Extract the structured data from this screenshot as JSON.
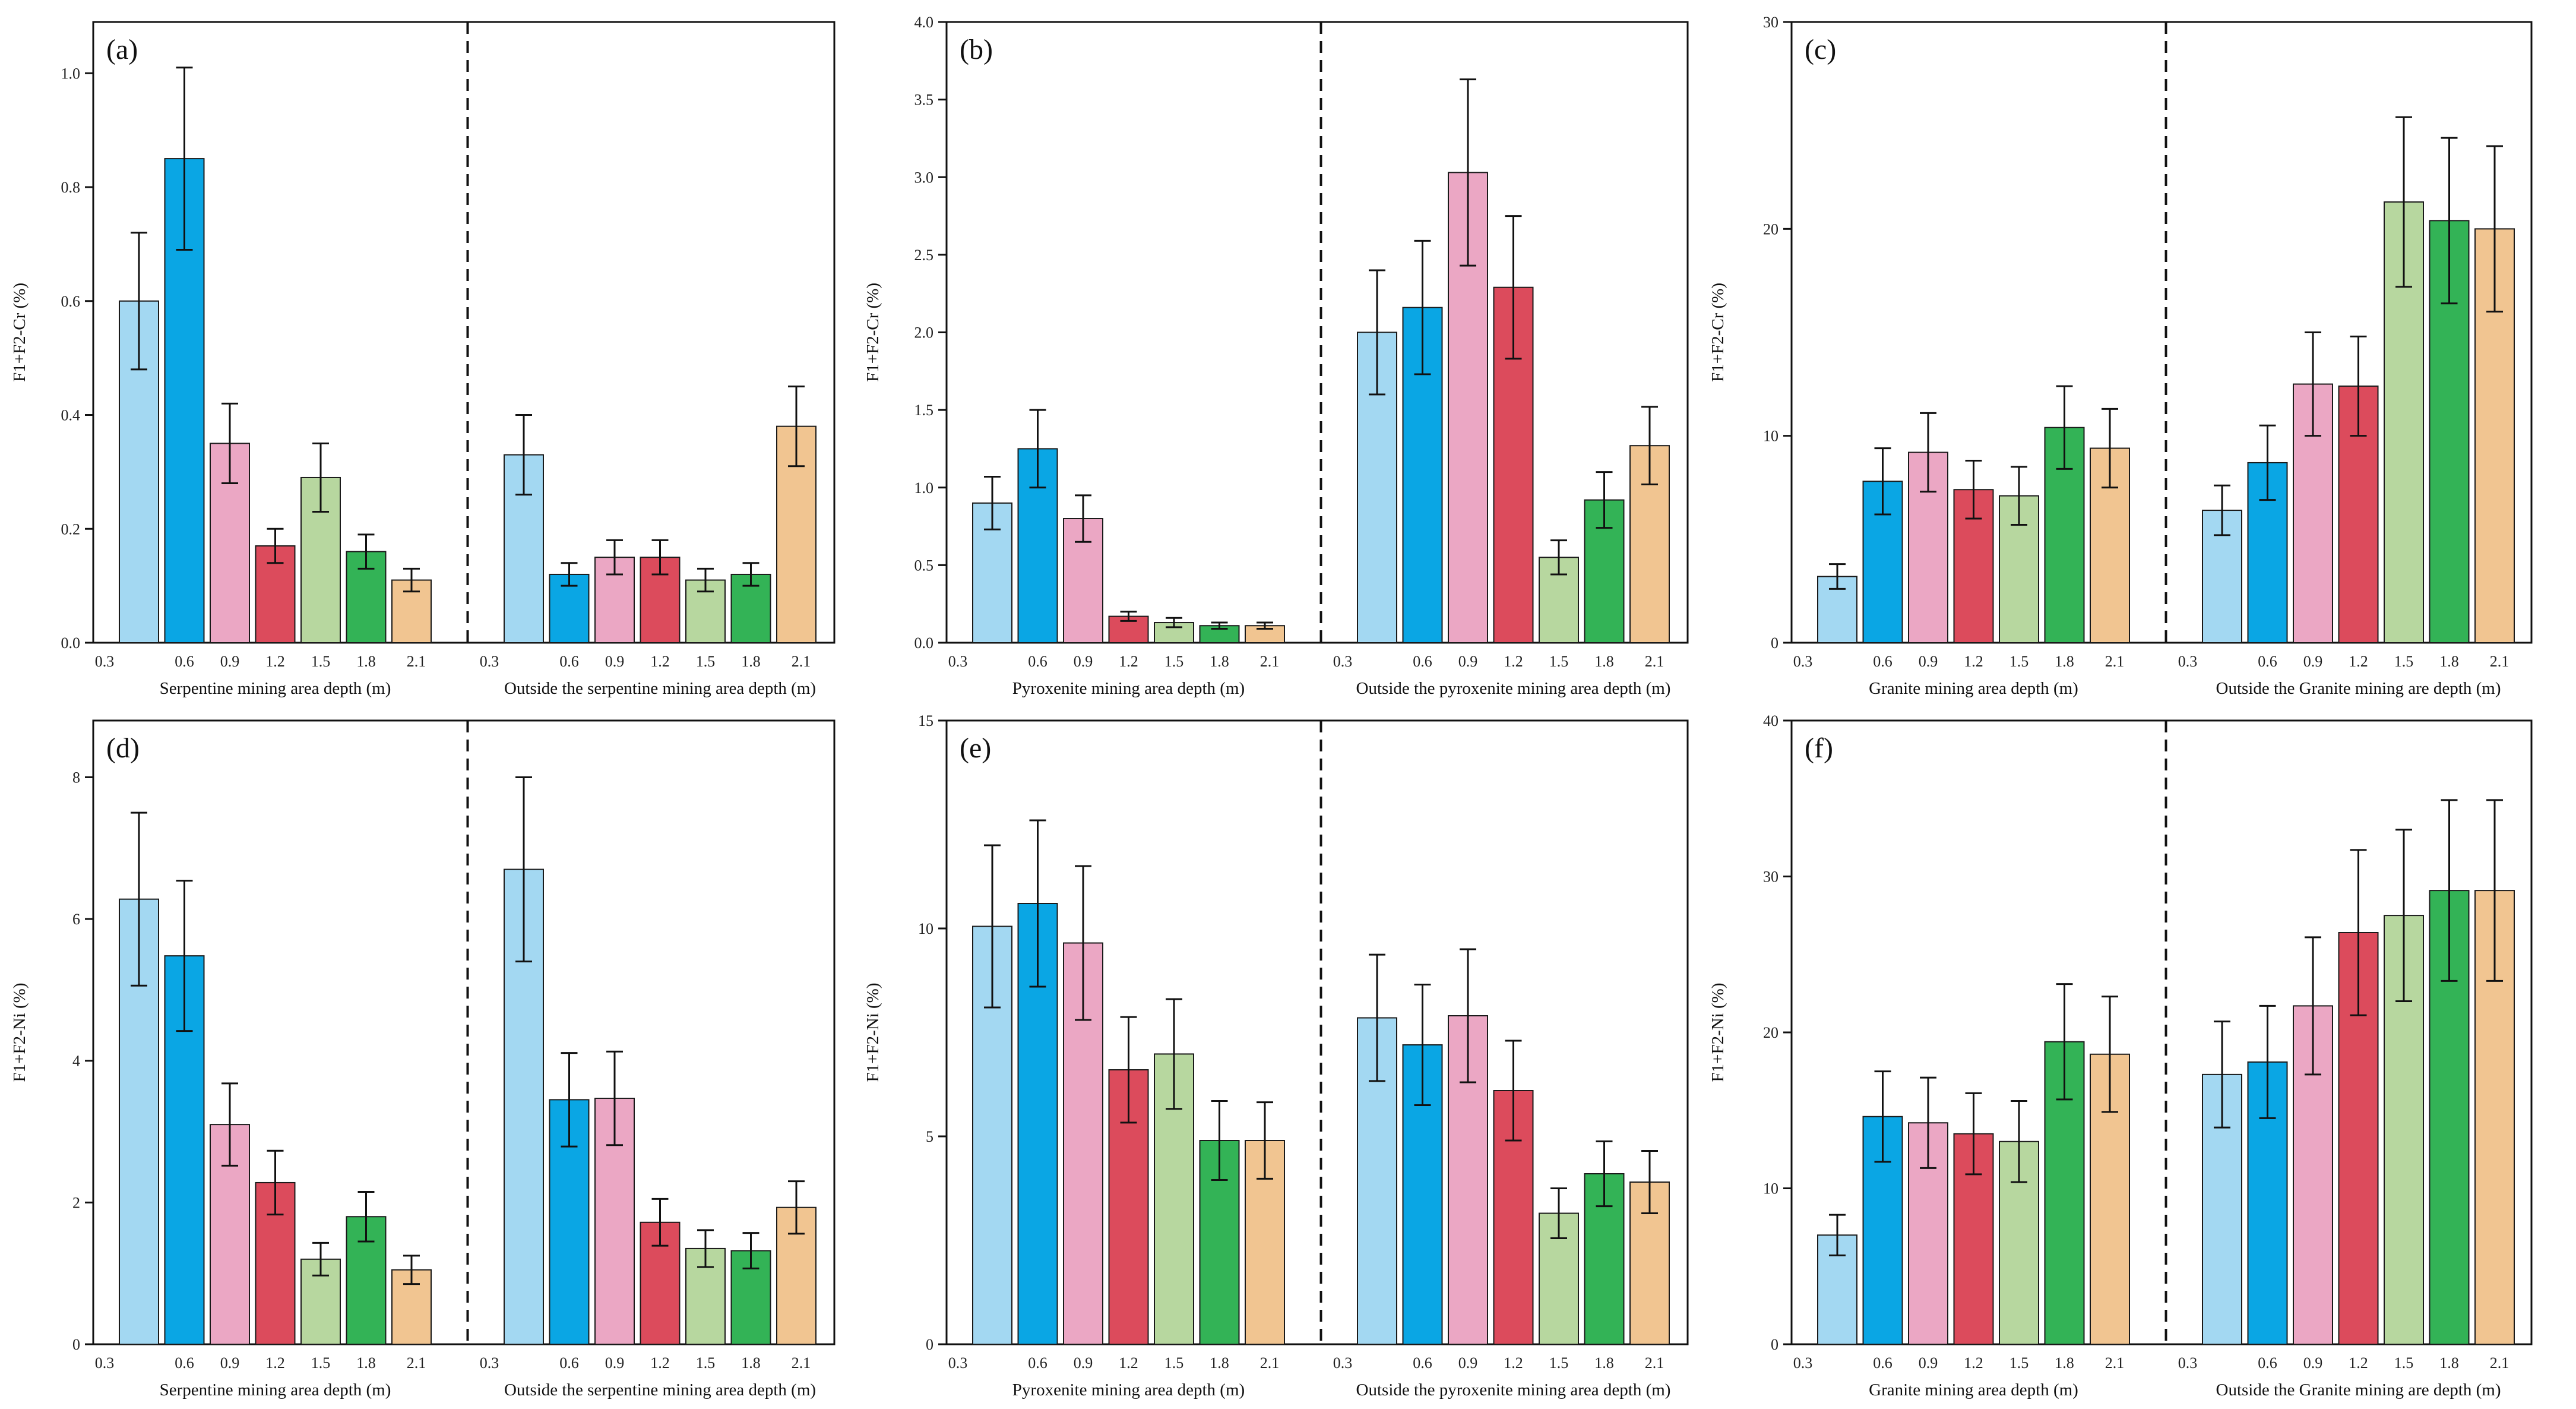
{
  "colors": {
    "depth_palette": [
      "#a3d8f2",
      "#0aa6e4",
      "#eba7c4",
      "#dc4b5c",
      "#b7d79f",
      "#33b356",
      "#f1c591"
    ],
    "bar_stroke": "#1a1a1a",
    "axis": "#111111",
    "divider": "#111111"
  },
  "chart_data": [
    {
      "type": "bar",
      "panel_label": "(a)",
      "ylabel": "F1+F2-Cr (%)",
      "ylim": [
        0,
        1.09
      ],
      "yticks": [
        "0.0",
        "0.2",
        "0.4",
        "0.6",
        "0.8",
        "1.0"
      ],
      "ytick_values": [
        0,
        0.2,
        0.4,
        0.6,
        0.8,
        1.0
      ],
      "categories": [
        "0.3",
        "0.6",
        "0.9",
        "1.2",
        "1.5",
        "1.8",
        "2.1"
      ],
      "groups": [
        {
          "xlabel": "Serpentine mining area depth (m)",
          "values": [
            0.6,
            0.85,
            0.35,
            0.17,
            0.29,
            0.16,
            0.11
          ],
          "errors": [
            0.12,
            0.16,
            0.07,
            0.03,
            0.06,
            0.03,
            0.02
          ]
        },
        {
          "xlabel": "Outside the serpentine mining area depth (m)",
          "values": [
            0.33,
            0.12,
            0.15,
            0.15,
            0.11,
            0.12,
            0.38
          ],
          "errors": [
            0.07,
            0.02,
            0.03,
            0.03,
            0.02,
            0.02,
            0.07
          ]
        }
      ]
    },
    {
      "type": "bar",
      "panel_label": "(b)",
      "ylabel": "F1+F2-Cr (%)",
      "ylim": [
        0,
        4.0
      ],
      "yticks": [
        "0.0",
        "0.5",
        "1.0",
        "1.5",
        "2.0",
        "2.5",
        "3.0",
        "3.5",
        "4.0"
      ],
      "ytick_values": [
        0,
        0.5,
        1.0,
        1.5,
        2.0,
        2.5,
        3.0,
        3.5,
        4.0
      ],
      "categories": [
        "0.3",
        "0.6",
        "0.9",
        "1.2",
        "1.5",
        "1.8",
        "2.1"
      ],
      "groups": [
        {
          "xlabel": "Pyroxenite mining area depth (m)",
          "values": [
            0.9,
            1.25,
            0.8,
            0.17,
            0.13,
            0.11,
            0.11
          ],
          "errors": [
            0.17,
            0.25,
            0.15,
            0.03,
            0.03,
            0.02,
            0.02
          ]
        },
        {
          "xlabel": "Outside the pyroxenite mining area depth (m)",
          "values": [
            2.0,
            2.16,
            3.03,
            2.29,
            0.55,
            0.92,
            1.27
          ],
          "errors": [
            0.4,
            0.43,
            0.6,
            0.46,
            0.11,
            0.18,
            0.25
          ]
        }
      ]
    },
    {
      "type": "bar",
      "panel_label": "(c)",
      "ylabel": "F1+F2-Cr (%)",
      "ylim": [
        0,
        30
      ],
      "yticks": [
        "0",
        "10",
        "20",
        "30"
      ],
      "ytick_values": [
        0,
        10,
        20,
        30
      ],
      "categories": [
        "0.3",
        "0.6",
        "0.9",
        "1.2",
        "1.5",
        "1.8",
        "2.1"
      ],
      "groups": [
        {
          "xlabel": "Granite mining area depth (m)",
          "values": [
            3.2,
            7.8,
            9.2,
            7.4,
            7.1,
            10.4,
            9.4
          ],
          "errors": [
            0.6,
            1.6,
            1.9,
            1.4,
            1.4,
            2.0,
            1.9
          ]
        },
        {
          "xlabel": "Outside the Granite mining are depth (m)",
          "values": [
            6.4,
            8.7,
            12.5,
            12.4,
            21.3,
            20.4,
            20.0
          ],
          "errors": [
            1.2,
            1.8,
            2.5,
            2.4,
            4.1,
            4.0,
            4.0
          ]
        }
      ]
    },
    {
      "type": "bar",
      "panel_label": "(d)",
      "ylabel": "F1+F2-Ni (%)",
      "ylim": [
        0,
        8.8
      ],
      "yticks": [
        "0",
        "2",
        "4",
        "6",
        "8"
      ],
      "ytick_values": [
        0,
        2,
        4,
        6,
        8
      ],
      "categories": [
        "0.3",
        "0.6",
        "0.9",
        "1.2",
        "1.5",
        "1.8",
        "2.1"
      ],
      "groups": [
        {
          "xlabel": "Serpentine mining area depth (m)",
          "values": [
            6.28,
            5.48,
            3.1,
            2.28,
            1.2,
            1.8,
            1.05
          ],
          "errors": [
            1.22,
            1.06,
            0.58,
            0.45,
            0.23,
            0.35,
            0.2
          ]
        },
        {
          "xlabel": "Outside the serpentine mining area depth (m)",
          "values": [
            6.7,
            3.45,
            3.47,
            1.72,
            1.35,
            1.32,
            1.93
          ],
          "errors": [
            1.3,
            0.66,
            0.66,
            0.33,
            0.26,
            0.25,
            0.37
          ]
        }
      ]
    },
    {
      "type": "bar",
      "panel_label": "(e)",
      "ylabel": "F1+F2-Ni (%)",
      "ylim": [
        0,
        15
      ],
      "yticks": [
        "0",
        "5",
        "10",
        "15"
      ],
      "ytick_values": [
        0,
        5,
        10,
        15
      ],
      "categories": [
        "0.3",
        "0.6",
        "0.9",
        "1.2",
        "1.5",
        "1.8",
        "2.1"
      ],
      "groups": [
        {
          "xlabel": "Pyroxenite mining area depth (m)",
          "values": [
            10.05,
            10.6,
            9.65,
            6.6,
            6.98,
            4.9,
            4.9
          ],
          "errors": [
            1.95,
            2.0,
            1.85,
            1.27,
            1.32,
            0.95,
            0.92
          ]
        },
        {
          "xlabel": "Outside the pyroxenite mining area depth (m)",
          "values": [
            7.85,
            7.2,
            7.9,
            6.1,
            3.15,
            4.1,
            3.9
          ],
          "errors": [
            1.52,
            1.45,
            1.6,
            1.2,
            0.6,
            0.78,
            0.75
          ]
        }
      ]
    },
    {
      "type": "bar",
      "panel_label": "(f)",
      "ylabel": "F1+F2-Ni (%)",
      "ylim": [
        0,
        40
      ],
      "yticks": [
        "0",
        "10",
        "20",
        "30",
        "40"
      ],
      "ytick_values": [
        0,
        10,
        20,
        30,
        40
      ],
      "categories": [
        "0.3",
        "0.6",
        "0.9",
        "1.2",
        "1.5",
        "1.8",
        "2.1"
      ],
      "groups": [
        {
          "xlabel": "Granite mining area depth (m)",
          "values": [
            7.0,
            14.6,
            14.2,
            13.5,
            13.0,
            19.4,
            18.6
          ],
          "errors": [
            1.3,
            2.9,
            2.9,
            2.6,
            2.6,
            3.7,
            3.7
          ]
        },
        {
          "xlabel": "Outside the Granite mining are depth (m)",
          "values": [
            17.3,
            18.1,
            21.7,
            26.4,
            27.5,
            29.1,
            29.1
          ],
          "errors": [
            3.4,
            3.6,
            4.4,
            5.3,
            5.5,
            5.8,
            5.8
          ]
        }
      ]
    }
  ]
}
